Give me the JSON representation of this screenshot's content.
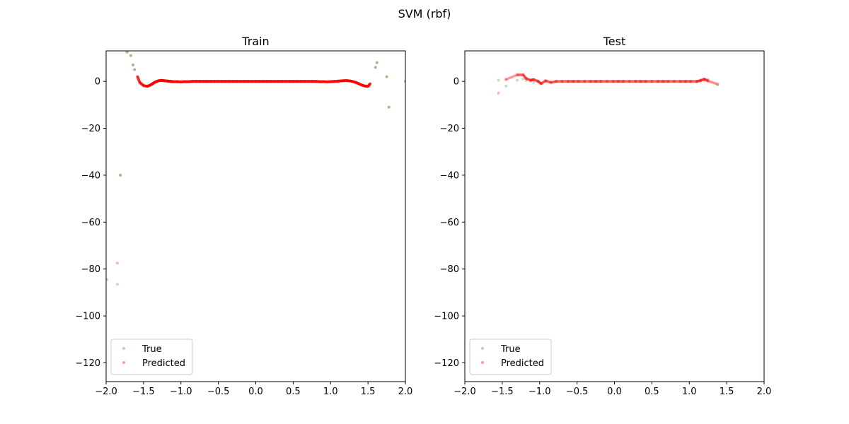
{
  "figure": {
    "suptitle": "SVM (rbf)"
  },
  "colors": {
    "true": "#2ca02c",
    "predicted": "#ff0000",
    "frame": "#000000",
    "legend_border": "#cccccc"
  },
  "chart_data": [
    {
      "type": "scatter",
      "title": "Train",
      "xlim": [
        -2.0,
        2.0
      ],
      "ylim": [
        -128,
        13
      ],
      "xticks": [
        -2.0,
        -1.5,
        -1.0,
        -0.5,
        0.0,
        0.5,
        1.0,
        1.5,
        2.0
      ],
      "xtick_labels": [
        "−2.0",
        "−1.5",
        "−1.0",
        "−0.5",
        "0.0",
        "0.5",
        "1.0",
        "1.5",
        "2.0"
      ],
      "yticks": [
        0,
        -20,
        -40,
        -60,
        -80,
        -100,
        -120
      ],
      "ytick_labels": [
        "0",
        "−20",
        "−40",
        "−60",
        "−80",
        "−100",
        "−120"
      ],
      "legend": {
        "placement": "lower-left",
        "entries": [
          "True",
          "Predicted"
        ]
      },
      "series": [
        {
          "name": "True",
          "x": [
            -1.85,
            -1.81,
            -1.72,
            -1.67,
            -1.64,
            -1.62,
            -1.58,
            -1.55,
            -1.5,
            -1.45,
            -1.41,
            -1.38,
            -1.35,
            -1.32,
            -1.29,
            -1.26,
            -1.23,
            -1.2,
            -1.17,
            -1.14,
            -1.1,
            -1.05,
            -1.0,
            -0.95,
            -0.9,
            -0.85,
            -0.8,
            -0.75,
            -0.7,
            -0.65,
            -0.6,
            -0.55,
            -0.5,
            -0.45,
            -0.4,
            -0.35,
            -0.3,
            -0.25,
            -0.2,
            -0.15,
            -0.1,
            -0.05,
            0.0,
            0.05,
            0.1,
            0.15,
            0.2,
            0.25,
            0.3,
            0.35,
            0.4,
            0.45,
            0.5,
            0.55,
            0.6,
            0.65,
            0.7,
            0.75,
            0.8,
            0.85,
            0.9,
            0.95,
            1.0,
            1.05,
            1.1,
            1.14,
            1.18,
            1.22,
            1.26,
            1.3,
            1.34,
            1.38,
            1.42,
            1.46,
            1.5,
            1.53,
            1.6,
            1.62,
            1.75,
            1.78,
            2.0
          ],
          "y": [
            -86.5,
            -40,
            12.5,
            11,
            7,
            5,
            2,
            -0.5,
            -1.8,
            -2.1,
            -1.6,
            -1.0,
            -0.4,
            0.0,
            0.3,
            0.4,
            0.3,
            0.2,
            0.1,
            0.0,
            -0.1,
            -0.1,
            -0.2,
            -0.1,
            -0.1,
            0.0,
            0.0,
            0.0,
            0.0,
            0.0,
            0.0,
            0.0,
            0.0,
            0.0,
            0.0,
            0.0,
            0.0,
            0.0,
            0.0,
            0.0,
            0.0,
            0.0,
            0.0,
            0.0,
            0.0,
            0.0,
            0.0,
            0.0,
            0.0,
            0.0,
            0.0,
            0.0,
            0.0,
            0.0,
            0.0,
            0.0,
            0.0,
            0.0,
            0.0,
            -0.1,
            -0.1,
            -0.2,
            -0.1,
            0.0,
            0.1,
            0.2,
            0.3,
            0.3,
            0.2,
            -0.1,
            -0.5,
            -1.0,
            -1.6,
            -2.0,
            -2.1,
            -1.0,
            6,
            8,
            2,
            -11,
            0
          ]
        },
        {
          "name": "Predicted",
          "x": [
            -1.99,
            -1.85,
            -1.81,
            -1.72,
            -1.67,
            -1.64,
            -1.62,
            -1.58,
            -1.55,
            -1.5,
            -1.45,
            -1.41,
            -1.38,
            -1.35,
            -1.32,
            -1.29,
            -1.26,
            -1.23,
            -1.2,
            -1.17,
            -1.14,
            -1.1,
            -1.05,
            -1.0,
            -0.95,
            -0.9,
            -0.85,
            -0.8,
            -0.75,
            -0.7,
            -0.65,
            -0.6,
            -0.55,
            -0.5,
            -0.45,
            -0.4,
            -0.35,
            -0.3,
            -0.25,
            -0.2,
            -0.15,
            -0.1,
            -0.05,
            0.0,
            0.05,
            0.1,
            0.15,
            0.2,
            0.25,
            0.3,
            0.35,
            0.4,
            0.45,
            0.5,
            0.55,
            0.6,
            0.65,
            0.7,
            0.75,
            0.8,
            0.85,
            0.9,
            0.95,
            1.0,
            1.05,
            1.1,
            1.14,
            1.18,
            1.22,
            1.26,
            1.3,
            1.34,
            1.38,
            1.42,
            1.46,
            1.5,
            1.53,
            1.6,
            1.62,
            1.75,
            1.78,
            2.0
          ],
          "y": [
            -84.5,
            -77.5,
            -40,
            12.5,
            11,
            7,
            5,
            2,
            -0.5,
            -1.8,
            -2.1,
            -1.6,
            -1.0,
            -0.4,
            0.0,
            0.3,
            0.4,
            0.3,
            0.2,
            0.1,
            0.0,
            -0.1,
            -0.1,
            -0.2,
            -0.1,
            -0.1,
            0.0,
            0.0,
            0.0,
            0.0,
            0.0,
            0.0,
            0.0,
            0.0,
            0.0,
            0.0,
            0.0,
            0.0,
            0.0,
            0.0,
            0.0,
            0.0,
            0.0,
            0.0,
            0.0,
            0.0,
            0.0,
            0.0,
            0.0,
            0.0,
            0.0,
            0.0,
            0.0,
            0.0,
            0.0,
            0.0,
            0.0,
            0.0,
            0.0,
            0.0,
            -0.1,
            -0.1,
            -0.2,
            -0.1,
            0.0,
            0.1,
            0.2,
            0.3,
            0.3,
            0.2,
            -0.1,
            -0.5,
            -1.0,
            -1.6,
            -2.0,
            -2.1,
            -1.0,
            6,
            8,
            2,
            -11,
            0
          ]
        }
      ]
    },
    {
      "type": "scatter",
      "title": "Test",
      "xlim": [
        -2.0,
        2.0
      ],
      "ylim": [
        -128,
        13
      ],
      "xticks": [
        -2.0,
        -1.5,
        -1.0,
        -0.5,
        0.0,
        0.5,
        1.0,
        1.5,
        2.0
      ],
      "xtick_labels": [
        "−2.0",
        "−1.5",
        "−1.0",
        "−0.5",
        "0.0",
        "0.5",
        "1.0",
        "1.5",
        "2.0"
      ],
      "yticks": [
        0,
        -20,
        -40,
        -60,
        -80,
        -100,
        -120
      ],
      "ytick_labels": [
        "0",
        "−20",
        "−40",
        "−60",
        "−80",
        "−100",
        "−120"
      ],
      "legend": {
        "placement": "lower-left",
        "entries": [
          "True",
          "Predicted"
        ]
      },
      "series": [
        {
          "name": "True",
          "x": [
            -1.55,
            -1.45,
            -1.3,
            -1.22,
            -1.18,
            -1.12,
            -1.08,
            -1.02,
            -0.98,
            -0.92,
            -0.85,
            -0.78,
            -0.7,
            -0.62,
            -0.55,
            -0.48,
            -0.4,
            -0.32,
            -0.25,
            -0.18,
            -0.1,
            -0.02,
            0.05,
            0.12,
            0.2,
            0.28,
            0.35,
            0.42,
            0.5,
            0.58,
            0.65,
            0.72,
            0.8,
            0.88,
            0.95,
            1.02,
            1.1,
            1.15,
            1.2,
            1.25,
            1.38
          ],
          "y": [
            0.5,
            -2.0,
            0.5,
            1.0,
            0.3,
            0.0,
            -0.5,
            0.2,
            -0.8,
            0.0,
            -0.3,
            0.1,
            0.0,
            0.0,
            0.0,
            0.0,
            0.0,
            0.0,
            0.0,
            0.0,
            0.0,
            0.0,
            0.0,
            0.0,
            0.0,
            0.0,
            0.0,
            0.0,
            0.0,
            0.0,
            0.0,
            0.0,
            0.0,
            0.0,
            0.0,
            0.0,
            -0.3,
            0.6,
            0.2,
            0.8,
            -1.5
          ]
        },
        {
          "name": "Predicted",
          "x": [
            -1.55,
            -1.45,
            -1.3,
            -1.22,
            -1.18,
            -1.12,
            -1.08,
            -1.02,
            -0.98,
            -0.92,
            -0.85,
            -0.78,
            -0.7,
            -0.62,
            -0.55,
            -0.48,
            -0.4,
            -0.32,
            -0.25,
            -0.18,
            -0.1,
            -0.02,
            0.05,
            0.12,
            0.2,
            0.28,
            0.35,
            0.42,
            0.5,
            0.58,
            0.65,
            0.72,
            0.8,
            0.88,
            0.95,
            1.02,
            1.1,
            1.15,
            1.2,
            1.25,
            1.38
          ],
          "y": [
            -5.0,
            0.8,
            2.8,
            2.8,
            1.2,
            0.5,
            0.8,
            0.0,
            -1.0,
            0.3,
            -0.5,
            0.0,
            0.0,
            0.0,
            0.0,
            0.0,
            0.0,
            0.0,
            0.0,
            0.0,
            0.0,
            0.0,
            0.0,
            0.0,
            0.0,
            0.0,
            0.0,
            0.0,
            0.0,
            0.0,
            0.0,
            0.0,
            0.0,
            0.0,
            0.0,
            0.0,
            0.0,
            0.3,
            1.0,
            0.2,
            -1.2
          ]
        }
      ]
    }
  ]
}
